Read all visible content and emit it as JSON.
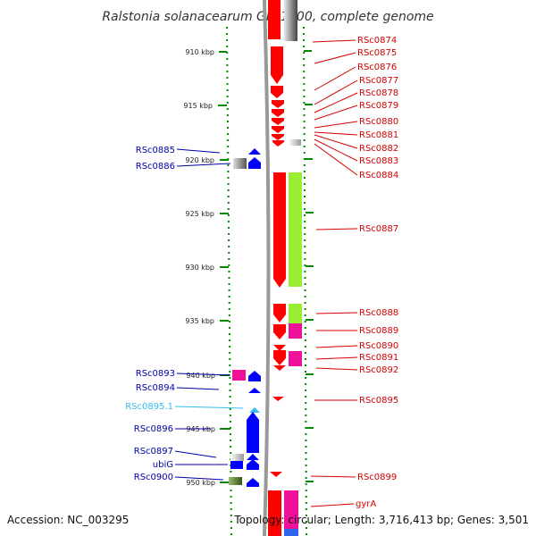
{
  "title": "Ralstonia solanacearum GMI1000, complete genome",
  "footer": {
    "accession": "Accession: NC_003295",
    "summary": "Topology: circular; Length: 3,716,413 bp; Genes: 3,501"
  },
  "kbp_ticks": [
    {
      "label": "910 kbp",
      "pos": 910
    },
    {
      "label": "915 kbp",
      "pos": 915
    },
    {
      "label": "920 kbp",
      "pos": 920
    },
    {
      "label": "925 kbp",
      "pos": 925
    },
    {
      "label": "930 kbp",
      "pos": 930
    },
    {
      "label": "935 kbp",
      "pos": 935
    },
    {
      "label": "940 kbp",
      "pos": 940
    },
    {
      "label": "945 kbp",
      "pos": 945
    },
    {
      "label": "950 kbp",
      "pos": 950
    }
  ],
  "colors": {
    "forward_label": "#d40000",
    "reverse_label": "#0000aa",
    "rna_label": "#33bbee",
    "forward_cds": "#ff0000",
    "reverse_cds": "#0000ff",
    "tick_marks": "#008800"
  },
  "labels": {
    "forward": [
      "RSc0874",
      "RSc0875",
      "RSc0876",
      "RSc0877",
      "RSc0878",
      "RSc0879",
      "RSc0880",
      "RSc0881",
      "RSc0882",
      "RSc0883",
      "RSc0884",
      "RSc0887",
      "RSc0888",
      "RSc0889",
      "RSc0890",
      "RSc0891",
      "RSc0892",
      "RSc0895",
      "RSc0899",
      "gyrA"
    ],
    "reverse": [
      "RSc0885",
      "RSc0886",
      "RSc0893",
      "RSc0894",
      "RSc0895.1",
      "RSc0896",
      "RSc0897",
      "ubiG",
      "RSc0900"
    ]
  }
}
